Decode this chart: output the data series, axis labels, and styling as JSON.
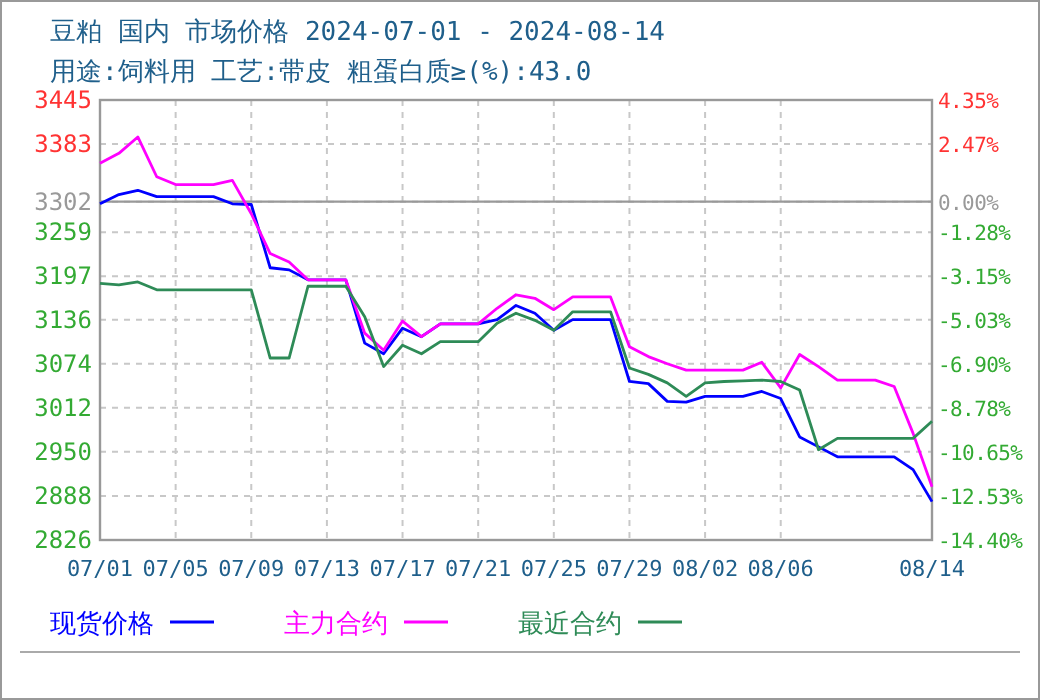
{
  "chart_data": {
    "type": "line",
    "title": "豆粕 国内 市场价格 2024-07-01 - 2024-08-14",
    "subtitle": "用途:饲料用 工艺:带皮 粗蛋白质≥(%):43.0",
    "x": [
      "--07-01",
      "--07-02",
      "--07-03",
      "--07-04",
      "--07-05",
      "--07-06",
      "--07-07",
      "--07-08",
      "--07-09",
      "--07-10",
      "--07-11",
      "--07-12",
      "--07-13",
      "--07-14",
      "--07-15",
      "--07-16",
      "--07-17",
      "--07-18",
      "--07-19",
      "--07-20",
      "--07-21",
      "--07-22",
      "--07-23",
      "--07-24",
      "--07-25",
      "--07-26",
      "--07-27",
      "--07-28",
      "--07-29",
      "--07-30",
      "--07-31",
      "--08-01",
      "--08-02",
      "--08-03",
      "--08-04",
      "--08-05",
      "--08-06",
      "--08-07",
      "--08-08",
      "--08-09",
      "--08-10",
      "--08-11",
      "--08-12",
      "--08-13",
      "--08-14"
    ],
    "series": [
      {
        "name": "现货价格",
        "color": "#0000ff",
        "values": [
          3299,
          3312,
          3318,
          3309,
          3309,
          3309,
          3309,
          3299,
          3298,
          3209,
          3206,
          3192,
          3192,
          3192,
          3103,
          3088,
          3124,
          3112,
          3130,
          3130,
          3130,
          3136,
          3156,
          3145,
          3121,
          3136,
          3136,
          3136,
          3049,
          3046,
          3021,
          3020,
          3028,
          3028,
          3028,
          3035,
          3025,
          2971,
          2957,
          2943,
          2943,
          2943,
          2943,
          2925,
          2880
        ]
      },
      {
        "name": "主力合约",
        "color": "#ff00ff",
        "values": [
          3356,
          3370,
          3393,
          3337,
          3326,
          3326,
          3326,
          3332,
          3285,
          3229,
          3217,
          3192,
          3192,
          3192,
          3117,
          3093,
          3134,
          3112,
          3130,
          3130,
          3130,
          3152,
          3171,
          3166,
          3150,
          3168,
          3168,
          3168,
          3098,
          3084,
          3074,
          3065,
          3065,
          3065,
          3065,
          3076,
          3040,
          3087,
          3070,
          3051,
          3051,
          3051,
          3042,
          2976,
          2901
        ]
      },
      {
        "name": "最近合约",
        "color": "#2e8b57",
        "values": [
          3187,
          3185,
          3189,
          3178,
          3178,
          3178,
          3178,
          3178,
          3178,
          3082,
          3082,
          3183,
          3183,
          3183,
          3140,
          3070,
          3100,
          3088,
          3105,
          3105,
          3105,
          3131,
          3145,
          3135,
          3121,
          3147,
          3147,
          3147,
          3068,
          3059,
          3047,
          3028,
          3047,
          3049,
          3050,
          3051,
          3049,
          3037,
          2953,
          2969,
          2969,
          2969,
          2969,
          2969,
          2993
        ]
      }
    ],
    "xlim": [
      "--07-01",
      "--08-14"
    ],
    "xticks": [
      {
        "value": "--07-01",
        "label": "07/01"
      },
      {
        "value": "--07-05",
        "label": "07/05"
      },
      {
        "value": "--07-09",
        "label": "07/09"
      },
      {
        "value": "--07-13",
        "label": "07/13"
      },
      {
        "value": "--07-17",
        "label": "07/17"
      },
      {
        "value": "--07-21",
        "label": "07/21"
      },
      {
        "value": "--07-25",
        "label": "07/25"
      },
      {
        "value": "--07-29",
        "label": "07/29"
      },
      {
        "value": "--08-02",
        "label": "08/02"
      },
      {
        "value": "--08-06",
        "label": "08/06"
      },
      {
        "value": "--08-14",
        "label": "08/14"
      }
    ],
    "ylim": [
      2826,
      3445
    ],
    "yticks": [
      3445,
      3383,
      3302,
      3259,
      3197,
      3136,
      3074,
      3012,
      2950,
      2888,
      2826
    ],
    "y2lim": [
      -14.4,
      4.35
    ],
    "y2ticks": [
      {
        "value": 4.35,
        "label": "4.35%"
      },
      {
        "value": 2.47,
        "label": "2.47%"
      },
      {
        "value": 0,
        "label": "0.00%"
      },
      {
        "value": -1.28,
        "label": "-1.28%"
      },
      {
        "value": -3.15,
        "label": "-3.15%"
      },
      {
        "value": -5.03,
        "label": "-5.03%"
      },
      {
        "value": -6.9,
        "label": "-6.90%"
      },
      {
        "value": -8.78,
        "label": "-8.78%"
      },
      {
        "value": -10.65,
        "label": "-10.65%"
      },
      {
        "value": -12.53,
        "label": "-12.53%"
      },
      {
        "value": -14.4,
        "label": "-14.40%"
      }
    ],
    "ref_lines": [
      {
        "axis": "y",
        "value": 3302,
        "color": "#999999",
        "line_style": "solid"
      }
    ],
    "grid": true,
    "legend": "bottom",
    "line_style": "solid",
    "marker": "none"
  }
}
